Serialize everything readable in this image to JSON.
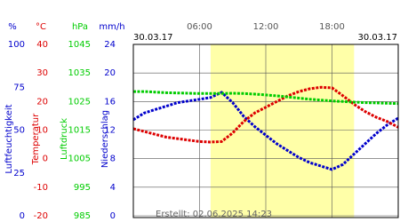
{
  "chart_data": {
    "type": "line",
    "date_left": "30.03.17",
    "date_right": "30.03.17",
    "created": "Erstellt: 02.06.2025 14:23",
    "xlim": [
      0,
      24
    ],
    "xticks": [
      {
        "value": 6,
        "label": "06:00"
      },
      {
        "value": 12,
        "label": "12:00"
      },
      {
        "value": 18,
        "label": "18:00"
      }
    ],
    "shaded_x": [
      7,
      20
    ],
    "shade_color": "#ffffa8",
    "grid": true,
    "axes": [
      {
        "unit": "%",
        "label": "Luftfeuchtigkeit",
        "color": "#0000cc",
        "ylim": [
          0,
          100
        ],
        "yticks": [
          0,
          25,
          50,
          75,
          100
        ]
      },
      {
        "unit": "°C",
        "label": "Temperatur",
        "color": "#dd0000",
        "ylim": [
          -20,
          40
        ],
        "yticks": [
          -20,
          -10,
          0,
          10,
          20,
          30,
          40
        ]
      },
      {
        "unit": "hPa",
        "label": "Luftdruck",
        "color": "#00cc00",
        "ylim": [
          985,
          1045
        ],
        "yticks": [
          985,
          995,
          1005,
          1015,
          1025,
          1035,
          1045
        ]
      },
      {
        "unit": "mm/h",
        "label": "Niederschlag",
        "color": "#0000cc",
        "ylim": [
          0,
          24
        ],
        "yticks": [
          0,
          4,
          8,
          12,
          16,
          20,
          24
        ]
      }
    ],
    "x": [
      0,
      1,
      2,
      3,
      4,
      5,
      6,
      7,
      8,
      9,
      10,
      11,
      12,
      13,
      14,
      15,
      16,
      17,
      18,
      19,
      20,
      21,
      22,
      23,
      24
    ],
    "series": [
      {
        "axis": 0,
        "color": "#0000cc",
        "values": [
          56,
          60,
          62,
          64,
          66,
          67,
          68,
          69,
          72,
          66,
          58,
          52,
          47,
          42,
          38,
          34,
          31,
          29,
          27,
          30,
          36,
          42,
          48,
          53,
          57
        ]
      },
      {
        "axis": 1,
        "color": "#dd0000",
        "values": [
          10.5,
          9.5,
          8.5,
          7.5,
          7,
          6.5,
          6,
          5.8,
          6,
          9,
          13,
          16,
          18,
          20,
          22,
          23.5,
          24.5,
          25,
          24.8,
          22,
          19,
          16.5,
          14.5,
          13,
          11
        ]
      },
      {
        "axis": 2,
        "color": "#00cc00",
        "values": [
          1028.5,
          1028.5,
          1028.3,
          1028.1,
          1028,
          1027.9,
          1027.8,
          1027.8,
          1027.8,
          1027.9,
          1027.8,
          1027.6,
          1027.3,
          1027,
          1026.6,
          1026.2,
          1025.8,
          1025.5,
          1025.2,
          1025,
          1024.8,
          1024.6,
          1024.5,
          1024.4,
          1024.3
        ]
      }
    ]
  }
}
